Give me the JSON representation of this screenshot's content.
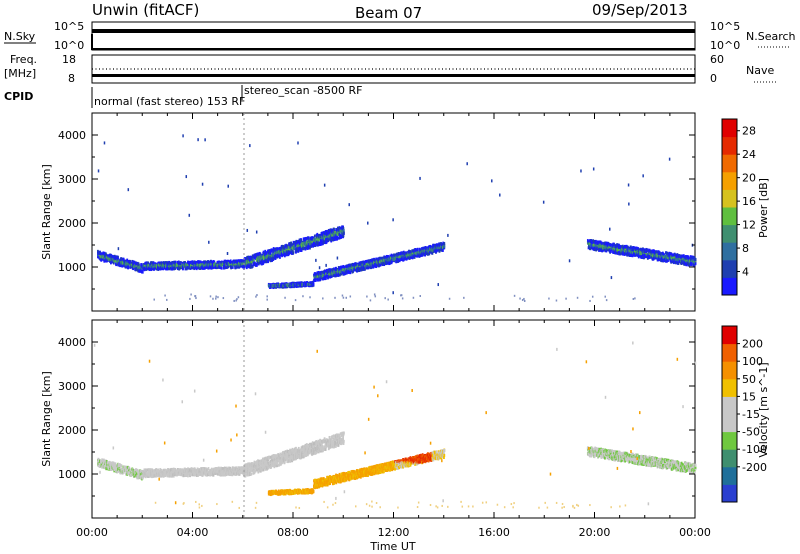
{
  "header": {
    "station": "Unwin (fitACF)",
    "beam": "Beam 07",
    "date": "09/Sep/2013"
  },
  "strip_panels": {
    "nsky_label": "N.Sky",
    "nsearch_label": "N.Search",
    "freq_label": "Freq.",
    "freq_unit": "[MHz]",
    "nave_label": "Nave",
    "cpid_label": "CPID",
    "left_tick_top": "10^5",
    "left_tick_bottom": "10^0",
    "right_tick_top": "10^5",
    "right_tick_bottom": "10^0",
    "freq_tick_top": "18",
    "freq_tick_bottom": "8",
    "nave_tick_top": "60",
    "nave_tick_bottom": "0",
    "cpid_mode_1": "normal (fast stereo) 153 RF",
    "cpid_mode_2": "stereo_scan -8500 RF"
  },
  "colors": {
    "power_scale": [
      "#1a1aff",
      "#1f3fb0",
      "#2f6fa0",
      "#3f8f70",
      "#5fbf3f",
      "#d6c21f",
      "#f5a000",
      "#f06a00",
      "#e52a00",
      "#e00000"
    ],
    "velocity_scale": [
      "#2a3fd0",
      "#1f6f9a",
      "#3f8f6f",
      "#6fc83f",
      "#c8c8c8",
      "#c8c8c8",
      "#f0c000",
      "#f59000",
      "#f06000",
      "#e00000"
    ]
  },
  "chart_data": [
    {
      "type": "heatmap",
      "title": "Power",
      "xlabel": "Time UT",
      "ylabel": "Slant Range [km]",
      "x_ticks": [
        "00:00",
        "04:00",
        "08:00",
        "12:00",
        "16:00",
        "20:00",
        "00:00"
      ],
      "y_ticks": [
        "1000",
        "2000",
        "3000",
        "4000"
      ],
      "xlim": [
        0,
        24
      ],
      "ylim": [
        0,
        4500
      ],
      "colorbar_label": "Power [dB]",
      "colorbar_ticks": [
        "4",
        "8",
        "12",
        "16",
        "20",
        "24",
        "28"
      ],
      "colorbar_range": [
        0,
        30
      ]
    },
    {
      "type": "heatmap",
      "title": "Velocity",
      "xlabel": "Time UT",
      "ylabel": "Slant Range [km]",
      "x_ticks": [
        "00:00",
        "04:00",
        "08:00",
        "12:00",
        "16:00",
        "20:00",
        "00:00"
      ],
      "y_ticks": [
        "1000",
        "2000",
        "3000",
        "4000"
      ],
      "xlim": [
        0,
        24
      ],
      "ylim": [
        0,
        4500
      ],
      "colorbar_label": "Velocity [m s^-1]",
      "colorbar_ticks": [
        "200",
        "100",
        "50",
        "15",
        "-15",
        "-50",
        "-100",
        "-200"
      ],
      "colorbar_range": [
        -250,
        250
      ]
    }
  ]
}
